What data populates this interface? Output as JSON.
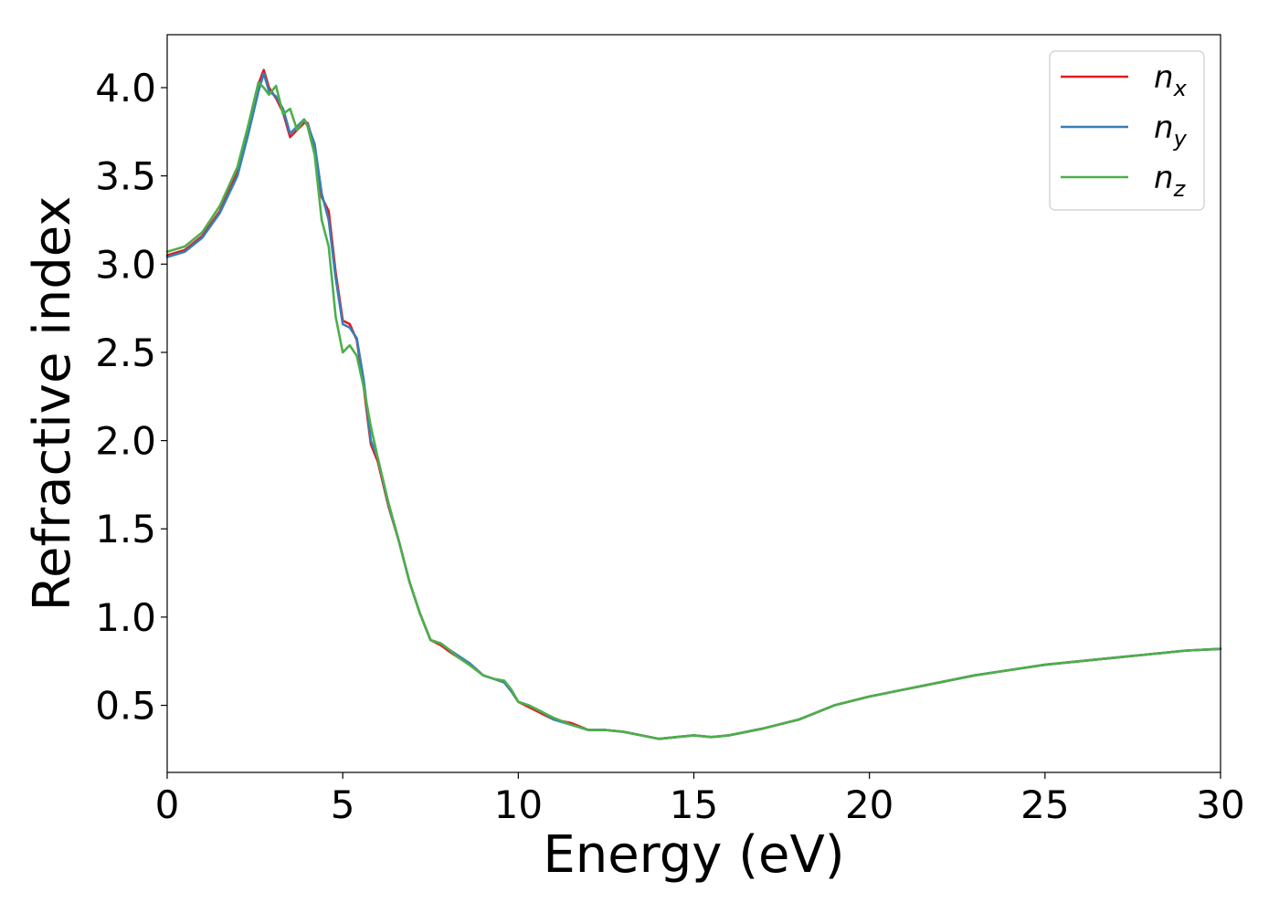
{
  "chart_data": {
    "type": "line",
    "title": "",
    "xlabel": "Energy (eV)",
    "ylabel": "Refractive index",
    "xlim": [
      0,
      30
    ],
    "ylim": [
      0.12,
      4.3
    ],
    "xticks": [
      0,
      5,
      10,
      15,
      20,
      25,
      30
    ],
    "xtick_labels": [
      "0",
      "5",
      "10",
      "15",
      "20",
      "25",
      "30"
    ],
    "yticks": [
      0.5,
      1.0,
      1.5,
      2.0,
      2.5,
      3.0,
      3.5,
      4.0
    ],
    "ytick_labels": [
      "0.5",
      "1.0",
      "1.5",
      "2.0",
      "2.5",
      "3.0",
      "3.5",
      "4.0"
    ],
    "grid": false,
    "legend_position": "top-right",
    "series": [
      {
        "name": "n",
        "subscript": "x",
        "color": "#e41a1c",
        "x": [
          0,
          0.5,
          1.0,
          1.5,
          2.0,
          2.3,
          2.6,
          2.75,
          2.9,
          3.1,
          3.3,
          3.5,
          3.7,
          3.9,
          4.0,
          4.2,
          4.4,
          4.6,
          4.8,
          5.0,
          5.2,
          5.4,
          5.6,
          5.8,
          6.0,
          6.3,
          6.6,
          6.9,
          7.2,
          7.5,
          7.8,
          8.0,
          8.3,
          8.6,
          9.0,
          9.3,
          9.6,
          9.8,
          10.0,
          10.3,
          10.7,
          11.0,
          11.5,
          12.0,
          12.5,
          13.0,
          13.5,
          14.0,
          14.5,
          15.0,
          15.5,
          16.0,
          16.5,
          17.0,
          18.0,
          19.0,
          20.0,
          21.0,
          22.0,
          23.0,
          24.0,
          25.0,
          26.0,
          27.0,
          28.0,
          29.0,
          30.0
        ],
        "y": [
          3.05,
          3.08,
          3.16,
          3.3,
          3.52,
          3.75,
          4.02,
          4.1,
          4.0,
          3.94,
          3.86,
          3.72,
          3.76,
          3.8,
          3.8,
          3.66,
          3.38,
          3.3,
          2.95,
          2.68,
          2.66,
          2.57,
          2.3,
          1.98,
          1.88,
          1.63,
          1.43,
          1.2,
          1.02,
          0.87,
          0.84,
          0.81,
          0.77,
          0.74,
          0.67,
          0.65,
          0.63,
          0.58,
          0.52,
          0.49,
          0.45,
          0.42,
          0.4,
          0.36,
          0.36,
          0.35,
          0.33,
          0.31,
          0.32,
          0.33,
          0.32,
          0.33,
          0.35,
          0.37,
          0.42,
          0.5,
          0.55,
          0.59,
          0.63,
          0.67,
          0.7,
          0.73,
          0.75,
          0.77,
          0.79,
          0.81,
          0.82
        ]
      },
      {
        "name": "n",
        "subscript": "y",
        "color": "#377eb8",
        "x": [
          0,
          0.5,
          1.0,
          1.5,
          2.0,
          2.3,
          2.6,
          2.75,
          2.9,
          3.1,
          3.3,
          3.5,
          3.7,
          3.9,
          4.0,
          4.2,
          4.4,
          4.6,
          4.8,
          5.0,
          5.2,
          5.4,
          5.6,
          5.8,
          6.0,
          6.3,
          6.6,
          6.9,
          7.2,
          7.5,
          7.8,
          8.0,
          8.3,
          8.6,
          9.0,
          9.3,
          9.6,
          9.8,
          10.0,
          10.3,
          10.7,
          11.0,
          11.5,
          12.0,
          12.5,
          13.0,
          13.5,
          14.0,
          14.5,
          15.0,
          15.5,
          16.0,
          16.5,
          17.0,
          18.0,
          19.0,
          20.0,
          21.0,
          22.0,
          23.0,
          24.0,
          25.0,
          26.0,
          27.0,
          28.0,
          29.0,
          30.0
        ],
        "y": [
          3.04,
          3.07,
          3.15,
          3.29,
          3.5,
          3.73,
          3.98,
          4.08,
          3.98,
          3.95,
          3.88,
          3.74,
          3.78,
          3.82,
          3.79,
          3.68,
          3.4,
          3.25,
          2.92,
          2.66,
          2.64,
          2.58,
          2.34,
          2.0,
          1.9,
          1.64,
          1.43,
          1.2,
          1.02,
          0.87,
          0.85,
          0.82,
          0.78,
          0.74,
          0.67,
          0.65,
          0.63,
          0.58,
          0.52,
          0.5,
          0.46,
          0.42,
          0.39,
          0.36,
          0.36,
          0.35,
          0.33,
          0.31,
          0.32,
          0.33,
          0.32,
          0.33,
          0.35,
          0.37,
          0.42,
          0.5,
          0.55,
          0.59,
          0.63,
          0.67,
          0.7,
          0.73,
          0.75,
          0.77,
          0.79,
          0.81,
          0.82
        ]
      },
      {
        "name": "n",
        "subscript": "z",
        "color": "#4daf4a",
        "x": [
          0,
          0.5,
          1.0,
          1.5,
          2.0,
          2.3,
          2.6,
          2.75,
          2.9,
          3.1,
          3.3,
          3.5,
          3.7,
          3.9,
          4.0,
          4.2,
          4.4,
          4.6,
          4.8,
          5.0,
          5.2,
          5.4,
          5.6,
          5.8,
          6.0,
          6.3,
          6.6,
          6.9,
          7.2,
          7.5,
          7.8,
          8.0,
          8.3,
          8.6,
          9.0,
          9.3,
          9.6,
          9.8,
          10.0,
          10.3,
          10.7,
          11.0,
          11.5,
          12.0,
          12.5,
          13.0,
          13.5,
          14.0,
          14.5,
          15.0,
          15.5,
          16.0,
          16.5,
          17.0,
          18.0,
          19.0,
          20.0,
          21.0,
          22.0,
          23.0,
          24.0,
          25.0,
          26.0,
          27.0,
          28.0,
          29.0,
          30.0
        ],
        "y": [
          3.07,
          3.1,
          3.18,
          3.33,
          3.55,
          3.78,
          4.03,
          4.0,
          3.96,
          4.01,
          3.85,
          3.88,
          3.76,
          3.82,
          3.78,
          3.62,
          3.25,
          3.1,
          2.7,
          2.5,
          2.54,
          2.48,
          2.3,
          2.08,
          1.9,
          1.65,
          1.43,
          1.2,
          1.02,
          0.87,
          0.85,
          0.82,
          0.77,
          0.73,
          0.67,
          0.65,
          0.64,
          0.59,
          0.52,
          0.5,
          0.46,
          0.43,
          0.39,
          0.36,
          0.36,
          0.35,
          0.33,
          0.31,
          0.32,
          0.33,
          0.32,
          0.33,
          0.35,
          0.37,
          0.42,
          0.5,
          0.55,
          0.59,
          0.63,
          0.67,
          0.7,
          0.73,
          0.75,
          0.77,
          0.79,
          0.81,
          0.82
        ]
      }
    ]
  }
}
